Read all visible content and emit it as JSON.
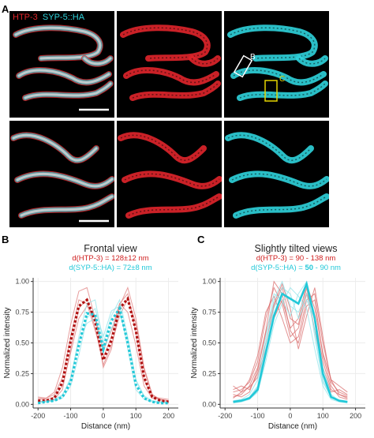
{
  "panels": {
    "a_label": "A",
    "b_label": "B",
    "c_label": "C"
  },
  "micrograph": {
    "legend_red": "HTP-3",
    "legend_sep": "  ",
    "legend_cyan": "SYP-5::HA",
    "box_b_label": "B",
    "box_c_label": "C",
    "colors": {
      "red": "#e0252b",
      "cyan": "#2fd3dc",
      "merge": "#d8d8d8",
      "box_b": "#ffffff",
      "box_c": "#e5d400"
    }
  },
  "chart_data": [
    {
      "type": "line",
      "title": "Frontal view",
      "subtitle_red": "d(HTP-3) = 128±12 nm",
      "subtitle_cyan": "d(SYP-5::HA) = 72±8 nm",
      "xlabel": "Distance (nm)",
      "ylabel": "Normalized intensity",
      "xlim": [
        -215,
        230
      ],
      "ylim": [
        -0.03,
        1.03
      ],
      "xticks": [
        -200,
        -100,
        0,
        100,
        200
      ],
      "yticks": [
        0.0,
        0.25,
        0.5,
        0.75,
        1.0
      ],
      "ytick_labels": [
        "0.00",
        "0.25",
        "0.50",
        "0.75",
        "1.00"
      ],
      "x": [
        -200,
        -175,
        -150,
        -125,
        -100,
        -75,
        -50,
        -25,
        0,
        25,
        50,
        75,
        100,
        125,
        150,
        175,
        200
      ],
      "series": [
        {
          "name": "HTP-3 mean",
          "color": "#b01010",
          "style": "dashed",
          "values": [
            0.03,
            0.03,
            0.05,
            0.18,
            0.52,
            0.8,
            0.85,
            0.68,
            0.36,
            0.52,
            0.78,
            0.86,
            0.6,
            0.22,
            0.06,
            0.03,
            0.02
          ]
        },
        {
          "name": "SYP-5::HA mean",
          "color": "#22c8d8",
          "style": "dashed",
          "values": [
            0.01,
            0.02,
            0.03,
            0.06,
            0.18,
            0.48,
            0.74,
            0.73,
            0.45,
            0.68,
            0.78,
            0.5,
            0.16,
            0.05,
            0.02,
            0.01,
            0.01
          ]
        }
      ],
      "thin_series": [
        {
          "color": "#e07d7d",
          "values": [
            0.04,
            0.05,
            0.1,
            0.3,
            0.65,
            0.92,
            0.95,
            0.7,
            0.3,
            0.45,
            0.8,
            0.95,
            0.7,
            0.3,
            0.08,
            0.04,
            0.03
          ]
        },
        {
          "color": "#e07d7d",
          "values": [
            0.05,
            0.04,
            0.06,
            0.15,
            0.42,
            0.7,
            0.8,
            0.72,
            0.45,
            0.6,
            0.82,
            0.75,
            0.48,
            0.15,
            0.05,
            0.04,
            0.03
          ]
        },
        {
          "color": "#e07d7d",
          "values": [
            0.02,
            0.03,
            0.04,
            0.12,
            0.45,
            0.78,
            0.86,
            0.62,
            0.32,
            0.48,
            0.72,
            0.86,
            0.66,
            0.28,
            0.08,
            0.03,
            0.02
          ]
        },
        {
          "color": "#e07d7d",
          "values": [
            0.06,
            0.05,
            0.08,
            0.22,
            0.55,
            0.85,
            0.82,
            0.6,
            0.38,
            0.55,
            0.82,
            0.9,
            0.58,
            0.2,
            0.06,
            0.05,
            0.04
          ]
        },
        {
          "color": "#8fe3ea",
          "values": [
            0.02,
            0.02,
            0.04,
            0.08,
            0.2,
            0.55,
            0.82,
            0.85,
            0.5,
            0.72,
            0.85,
            0.55,
            0.2,
            0.06,
            0.02,
            0.02,
            0.01
          ]
        },
        {
          "color": "#8fe3ea",
          "values": [
            0.01,
            0.02,
            0.03,
            0.05,
            0.15,
            0.4,
            0.7,
            0.78,
            0.55,
            0.76,
            0.8,
            0.45,
            0.12,
            0.04,
            0.02,
            0.01,
            0.01
          ]
        },
        {
          "color": "#8fe3ea",
          "values": [
            0.03,
            0.02,
            0.03,
            0.07,
            0.22,
            0.52,
            0.66,
            0.7,
            0.42,
            0.62,
            0.74,
            0.52,
            0.2,
            0.07,
            0.03,
            0.02,
            0.02
          ]
        }
      ]
    },
    {
      "type": "line",
      "title": "Slightly tilted views",
      "subtitle_red": "d(HTP-3) = 90 - 138 nm",
      "subtitle_cyan_pre": "d(SYP-5::HA) = ",
      "subtitle_cyan_bold": "50",
      "subtitle_cyan_post": " - 90 nm",
      "xlabel": "Distance (nm)",
      "ylabel": "Normalized intensity",
      "xlim": [
        -215,
        230
      ],
      "ylim": [
        -0.03,
        1.03
      ],
      "xticks": [
        -200,
        -100,
        0,
        100,
        200
      ],
      "yticks": [
        0.0,
        0.25,
        0.5,
        0.75,
        1.0
      ],
      "ytick_labels": [
        "0.00",
        "0.25",
        "0.50",
        "0.75",
        "1.00"
      ],
      "x": [
        -175,
        -150,
        -125,
        -100,
        -75,
        -50,
        -25,
        0,
        25,
        50,
        75,
        100,
        125,
        150,
        175
      ],
      "series": [
        {
          "name": "SYP-5::HA highlighted",
          "color": "#22c8d8",
          "style": "solid-thick",
          "values": [
            0.02,
            0.03,
            0.05,
            0.12,
            0.42,
            0.72,
            0.9,
            0.86,
            0.82,
            0.98,
            0.7,
            0.25,
            0.06,
            0.03,
            0.02
          ]
        }
      ],
      "thin_series": [
        {
          "color": "#d96b6b",
          "values": [
            0.1,
            0.12,
            0.18,
            0.35,
            0.7,
            0.95,
            0.82,
            0.55,
            0.62,
            0.9,
            0.72,
            0.35,
            0.12,
            0.08,
            0.05
          ]
        },
        {
          "color": "#d96b6b",
          "values": [
            0.06,
            0.08,
            0.15,
            0.3,
            0.6,
            1.0,
            0.9,
            0.6,
            0.5,
            0.8,
            0.85,
            0.4,
            0.15,
            0.06,
            0.04
          ]
        },
        {
          "color": "#d96b6b",
          "values": [
            0.12,
            0.15,
            0.12,
            0.25,
            0.5,
            0.8,
            0.95,
            0.7,
            0.65,
            0.95,
            0.6,
            0.3,
            0.1,
            0.12,
            0.08
          ]
        },
        {
          "color": "#d96b6b",
          "values": [
            0.05,
            0.1,
            0.2,
            0.4,
            0.75,
            0.88,
            0.7,
            0.5,
            0.55,
            0.85,
            0.9,
            0.5,
            0.2,
            0.08,
            0.06
          ]
        },
        {
          "color": "#d96b6b",
          "values": [
            0.08,
            0.06,
            0.1,
            0.28,
            0.58,
            0.82,
            0.98,
            0.78,
            0.45,
            0.72,
            0.95,
            0.55,
            0.18,
            0.1,
            0.07
          ]
        },
        {
          "color": "#d96b6b",
          "values": [
            0.15,
            0.1,
            0.14,
            0.22,
            0.45,
            0.7,
            0.85,
            0.62,
            0.7,
            0.98,
            0.78,
            0.42,
            0.2,
            0.15,
            0.1
          ]
        },
        {
          "color": "#8fe3ea",
          "values": [
            0.02,
            0.03,
            0.06,
            0.15,
            0.5,
            0.85,
            1.0,
            0.8,
            0.75,
            0.9,
            0.6,
            0.2,
            0.05,
            0.03,
            0.02
          ]
        },
        {
          "color": "#8fe3ea",
          "values": [
            0.03,
            0.04,
            0.08,
            0.2,
            0.55,
            0.9,
            0.85,
            0.72,
            0.9,
            1.0,
            0.55,
            0.18,
            0.06,
            0.03,
            0.02
          ]
        },
        {
          "color": "#8fe3ea",
          "values": [
            0.01,
            0.02,
            0.04,
            0.1,
            0.35,
            0.65,
            0.82,
            0.95,
            0.88,
            0.78,
            0.45,
            0.15,
            0.04,
            0.02,
            0.01
          ]
        },
        {
          "color": "#8fe3ea",
          "values": [
            0.02,
            0.03,
            0.05,
            0.14,
            0.45,
            0.78,
            0.95,
            0.9,
            0.7,
            0.85,
            0.7,
            0.3,
            0.08,
            0.03,
            0.02
          ]
        }
      ]
    }
  ]
}
